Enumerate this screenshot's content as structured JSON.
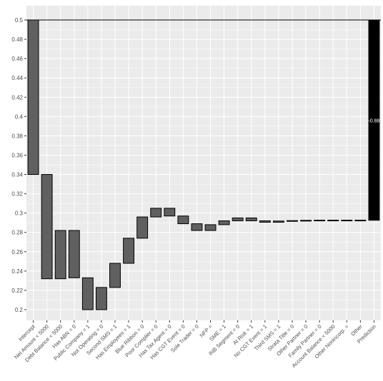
{
  "chart_data": {
    "type": "waterfall",
    "title": "",
    "xlabel": "",
    "ylabel": "",
    "ylim": [
      0.188,
      0.5
    ],
    "y_ticks": [
      0.2,
      0.22,
      0.24,
      0.26,
      0.28,
      0.3,
      0.32,
      0.34,
      0.36,
      0.38,
      0.4,
      0.42,
      0.44,
      0.46,
      0.48,
      0.5
    ],
    "y_tick_labels": [
      "0.2",
      "0.22",
      "0.24",
      "0.26",
      "0.28",
      "0.3",
      "0.32",
      "0.34",
      "0.36",
      "0.38",
      "0.4",
      "0.42",
      "0.44",
      "0.46",
      "0.48",
      "0.5"
    ],
    "grid": true,
    "colors": {
      "bar": "#606060",
      "prediction": "#000000",
      "panel": "#ebebeb",
      "grid": "#ffffff"
    },
    "categories": [
      "Intercept",
      "Net Amount < 5000",
      "Debt Balance < 5000",
      "Has ABN = 0",
      "Public Company = 1",
      "Not Operating = 0",
      "Second SMS = 1",
      "Has Employees = 1",
      "Blue Ribbon = 0",
      "Poor Complier = 0",
      "Has Tax Agent = 0",
      "Has CGT Event = 0",
      "Sole Trader = 0",
      "NFP = ",
      "SME = 1",
      "INB Segment = 0",
      "At Risk = 1",
      "No CGT Event = 1",
      "Third SMS = 1",
      "Strata Title = 0",
      "Other Partner = 0",
      "Family Partner = 0",
      "Account Balance < 5000",
      "Other Nonincorp. =",
      "Other",
      "Prediction"
    ],
    "bars": [
      {
        "start": 0.5,
        "end": 0.34
      },
      {
        "start": 0.34,
        "end": 0.232
      },
      {
        "start": 0.232,
        "end": 0.282
      },
      {
        "start": 0.282,
        "end": 0.233
      },
      {
        "start": 0.233,
        "end": 0.2
      },
      {
        "start": 0.2,
        "end": 0.223
      },
      {
        "start": 0.223,
        "end": 0.248
      },
      {
        "start": 0.248,
        "end": 0.274
      },
      {
        "start": 0.274,
        "end": 0.296
      },
      {
        "start": 0.296,
        "end": 0.305
      },
      {
        "start": 0.305,
        "end": 0.297
      },
      {
        "start": 0.297,
        "end": 0.289
      },
      {
        "start": 0.289,
        "end": 0.282
      },
      {
        "start": 0.282,
        "end": 0.288
      },
      {
        "start": 0.288,
        "end": 0.292
      },
      {
        "start": 0.292,
        "end": 0.295
      },
      {
        "start": 0.295,
        "end": 0.292
      },
      {
        "start": 0.292,
        "end": 0.2905
      },
      {
        "start": 0.2905,
        "end": 0.2918
      },
      {
        "start": 0.2918,
        "end": 0.2922
      },
      {
        "start": 0.2922,
        "end": 0.2925
      },
      {
        "start": 0.2925,
        "end": 0.2927
      },
      {
        "start": 0.2927,
        "end": 0.2925
      },
      {
        "start": 0.2925,
        "end": 0.2927
      },
      {
        "start": 0.2927,
        "end": 0.2926
      },
      {
        "start": 0.2926,
        "end": 0.5
      }
    ],
    "prediction_label": "0.88",
    "intercept_line": 0.5
  }
}
